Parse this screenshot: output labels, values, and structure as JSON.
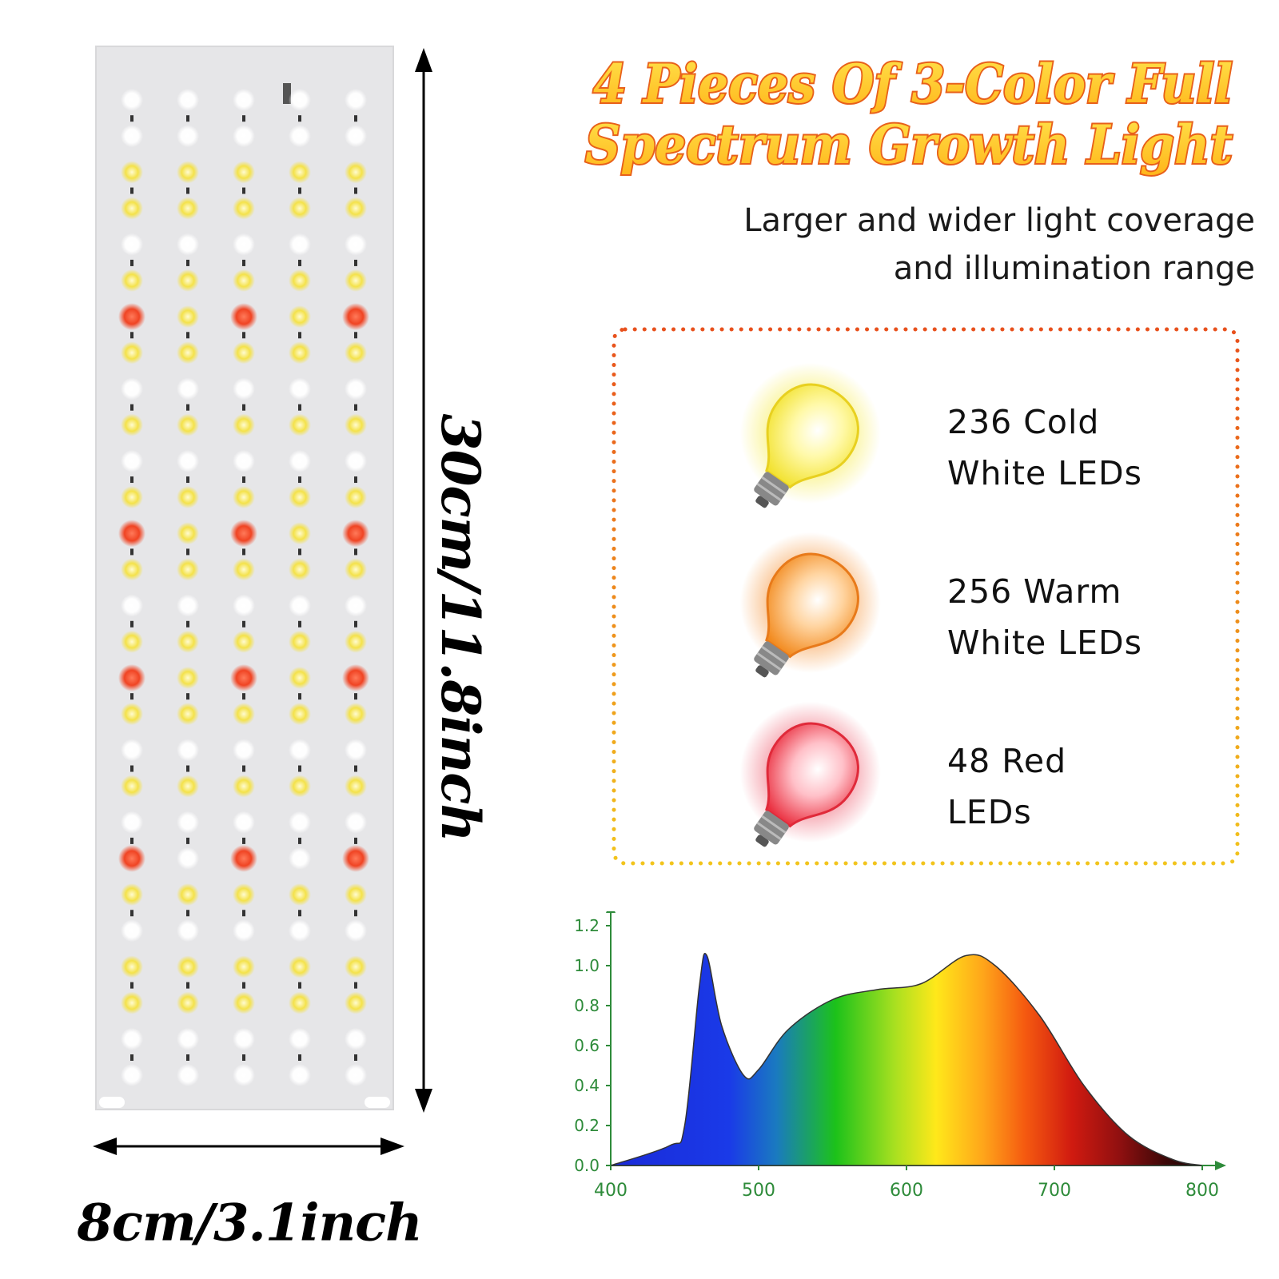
{
  "title": {
    "line1": "4 Pieces Of 3-Color Full",
    "line2": "Spectrum Growth Light"
  },
  "subtitle": {
    "line1": "Larger and wider light coverage",
    "line2": "and illumination range"
  },
  "dimensions": {
    "height": "30cm/11.8inch",
    "width": "8cm/3.1inch"
  },
  "leds": [
    {
      "line1": "236 Cold",
      "line2": "White LEDs",
      "icon": "yellow-bulb-icon",
      "color": "#f2e230"
    },
    {
      "line1": "256 Warm",
      "line2": "White LEDs",
      "icon": "orange-bulb-icon",
      "color": "#f28a1e"
    },
    {
      "line1": "48 Red",
      "line2": "LEDs",
      "icon": "red-bulb-icon",
      "color": "#ea3040"
    }
  ],
  "colors": {
    "title_fill": "#ffd21a",
    "title_outline": "#e8601a",
    "box_border_top": "#e8501c",
    "box_border_bottom": "#f2c41c",
    "axis": "#2e8b3a",
    "red_led": "#f04423",
    "yellow_led": "#f4e24a"
  },
  "chart_data": {
    "type": "area",
    "x": [
      400,
      440,
      450,
      460,
      465,
      475,
      490,
      500,
      520,
      550,
      580,
      610,
      640,
      660,
      690,
      720,
      750,
      780,
      800
    ],
    "y": [
      0.0,
      0.1,
      0.2,
      0.9,
      1.05,
      0.7,
      0.45,
      0.48,
      0.68,
      0.83,
      0.88,
      0.91,
      1.05,
      1.0,
      0.75,
      0.4,
      0.15,
      0.03,
      0.0
    ],
    "x_ticks": [
      "400",
      "500",
      "600",
      "700",
      "800"
    ],
    "y_ticks": [
      "0.0",
      "0.2",
      "0.4",
      "0.6",
      "0.8",
      "1.0",
      "1.2"
    ],
    "xlim": [
      400,
      800
    ],
    "ylim": [
      0,
      1.2
    ],
    "title": "",
    "xlabel": "",
    "ylabel": ""
  }
}
